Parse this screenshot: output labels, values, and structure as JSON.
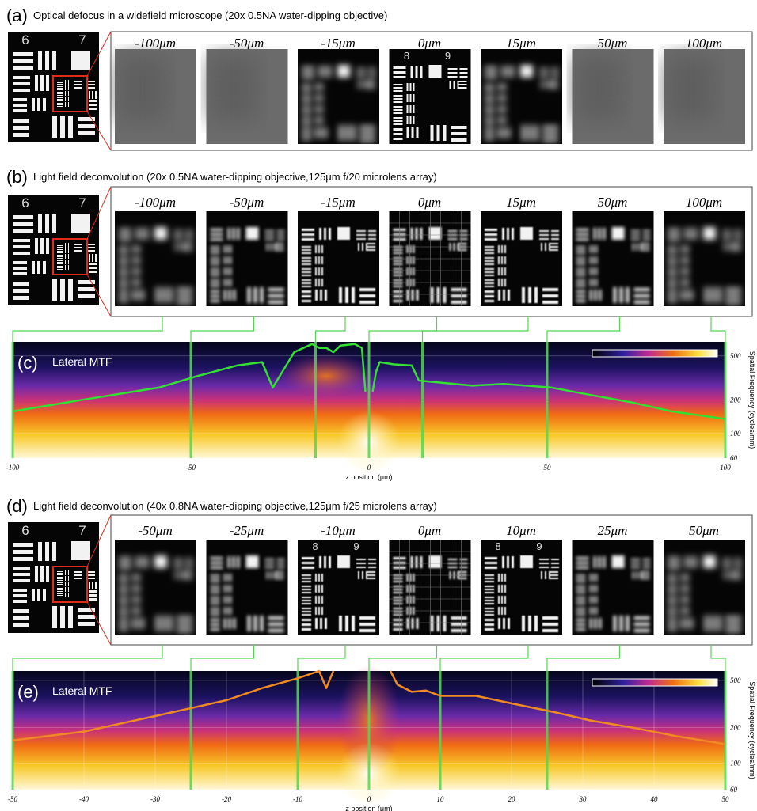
{
  "panels": [
    {
      "label": "(a)",
      "title": "Optical defocus in a widefield microscope (20x 0.5NA water-dipping objective)",
      "target_labels": [
        "6",
        "7"
      ],
      "depths": [
        "-100μm",
        "-50μm",
        "-15μm",
        "0μm",
        "15μm",
        "50μm",
        "100μm"
      ]
    },
    {
      "label": "(b)",
      "title": "Light field deconvolution (20x 0.5NA water-dipping objective,125μm f/20 microlens array)",
      "target_labels": [
        "6",
        "7"
      ],
      "depths": [
        "-100μm",
        "-50μm",
        "-15μm",
        "0μm",
        "15μm",
        "50μm",
        "100μm"
      ]
    },
    {
      "label": "(d)",
      "title": "Light field deconvolution (40x 0.8NA water-dipping objective,125μm f/25 microlens array)",
      "target_labels": [
        "6",
        "7"
      ],
      "depths": [
        "-50μm",
        "-25μm",
        "-10μm",
        "0μm",
        "10μm",
        "25μm",
        "50μm"
      ]
    }
  ],
  "zoom_labels": [
    "8",
    "9"
  ],
  "chart_data": [
    {
      "type": "heatmap",
      "label": "(c)",
      "title": "Lateral MTF",
      "xlabel": "z position (μm)",
      "ylabel": "Spatial Frequency (cycles/mm)",
      "xlim": [
        -100,
        100
      ],
      "xticks": [
        -100,
        -50,
        0,
        50,
        100
      ],
      "ylim": [
        60,
        670
      ],
      "yticks": [
        60,
        100,
        200,
        500
      ],
      "log_y": true,
      "markers": [
        -100,
        -50,
        -15,
        0,
        15,
        50,
        100
      ],
      "marker_color": "#4fd84f",
      "series": [
        {
          "color": "#33e033",
          "x": [
            -100,
            -81,
            -59,
            -48,
            -37,
            -30,
            -27,
            -21,
            -16,
            -14,
            -12,
            -10,
            -8,
            -4,
            -2,
            -1,
            0,
            1,
            2,
            3,
            7,
            12,
            14,
            29,
            38,
            51,
            63,
            74,
            85,
            100
          ],
          "values": [
            158,
            200,
            259,
            330,
            410,
            440,
            259,
            540,
            640,
            590,
            590,
            540,
            620,
            640,
            590,
            237,
            null,
            237,
            360,
            440,
            420,
            410,
            300,
            270,
            280,
            260,
            220,
            190,
            158,
            135
          ]
        }
      ]
    },
    {
      "type": "heatmap",
      "label": "(e)",
      "title": "Lateral MTF",
      "xlabel": "z position (μm)",
      "ylabel": "Spatial Frequency (cycles/mm)",
      "xlim": [
        -50,
        50
      ],
      "xticks": [
        -50,
        -40,
        -30,
        -20,
        -10,
        0,
        10,
        20,
        30,
        40,
        50
      ],
      "ylim": [
        60,
        600
      ],
      "yticks": [
        60,
        100,
        200,
        500
      ],
      "log_y": true,
      "markers": [
        -50,
        -25,
        -10,
        0,
        10,
        25,
        50
      ],
      "marker_color": "#4fd84f",
      "series": [
        {
          "color": "#f08a24",
          "x": [
            -50,
            -40,
            -30,
            -20,
            -15,
            -10,
            -7,
            -6,
            -5,
            -3,
            3,
            4,
            6,
            8,
            10,
            15,
            20,
            26,
            31,
            37,
            43,
            50
          ],
          "values": [
            156,
            185,
            250,
            340,
            430,
            520,
            600,
            430,
            600,
            null,
            600,
            460,
            400,
            410,
            370,
            370,
            320,
            270,
            230,
            200,
            170,
            145
          ]
        }
      ]
    }
  ]
}
